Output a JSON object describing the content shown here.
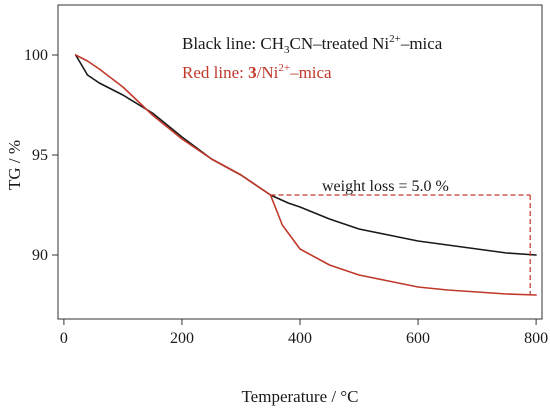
{
  "chart_data": {
    "type": "line",
    "xlabel": "Temperature / °C",
    "ylabel": "TG / %",
    "xlim": [
      -10,
      810
    ],
    "ylim": [
      86.8,
      102.5
    ],
    "xticks": [
      0,
      200,
      400,
      600,
      800
    ],
    "yticks": [
      90,
      95,
      100
    ],
    "grid": false,
    "legend": [
      {
        "prefix": "Black line: CH",
        "sub": "3",
        "mid": "CN–treated Ni",
        "sup": "2+",
        "suffix": "–mica",
        "color": "#1a1a1a"
      },
      {
        "prefix": "Red line: ",
        "bold": "3",
        "mid": "/Ni",
        "sup": "2+",
        "suffix": "–mica",
        "color": "#c0392b"
      }
    ],
    "series": [
      {
        "color": "#1a1a1a",
        "x": [
          20,
          40,
          60,
          100,
          150,
          200,
          250,
          300,
          330,
          350,
          380,
          400,
          450,
          500,
          550,
          600,
          650,
          700,
          750,
          800
        ],
        "y": [
          100.0,
          99.0,
          98.6,
          98.0,
          97.1,
          95.9,
          94.8,
          94.0,
          93.4,
          93.0,
          92.6,
          92.4,
          91.8,
          91.3,
          91.0,
          90.7,
          90.5,
          90.3,
          90.1,
          90.0
        ]
      },
      {
        "color": "#c0392b",
        "x": [
          20,
          40,
          60,
          100,
          150,
          200,
          250,
          300,
          330,
          350,
          370,
          400,
          450,
          500,
          550,
          600,
          650,
          700,
          750,
          800
        ],
        "y": [
          100.0,
          99.7,
          99.3,
          98.4,
          97.0,
          95.8,
          94.8,
          94.0,
          93.4,
          93.0,
          91.5,
          90.3,
          89.5,
          89.0,
          88.7,
          88.4,
          88.25,
          88.15,
          88.05,
          88.0
        ]
      }
    ],
    "annotation": {
      "text": "weight loss = 5.0 %",
      "color": "#c0392b",
      "x_from": 350,
      "x_to": 790,
      "y_top": 93.0,
      "y_bottom": 88.05
    }
  }
}
